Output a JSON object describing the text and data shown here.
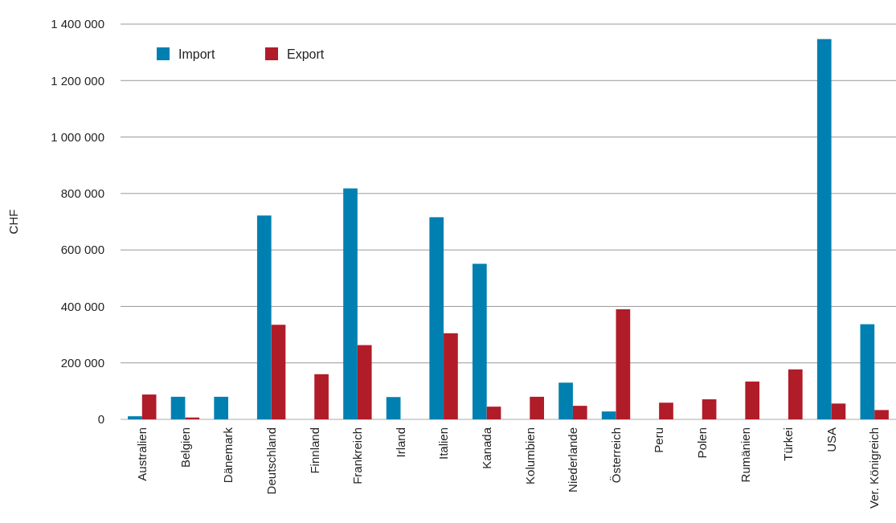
{
  "chart_data": {
    "type": "bar",
    "ylabel": "CHF",
    "categories": [
      "Australien",
      "Belgien",
      "Dänemark",
      "Deutschland",
      "Finnland",
      "Frankreich",
      "Irland",
      "Italien",
      "Kanada",
      "Kolumbien",
      "Niederlande",
      "Österreich",
      "Peru",
      "Polen",
      "Rumänien",
      "Türkei",
      "USA",
      "Ver. Königreich"
    ],
    "series": [
      {
        "name": "Import",
        "color": "#0080b0",
        "values": [
          11000,
          80000,
          80000,
          722000,
          null,
          818000,
          79000,
          716000,
          551000,
          null,
          130000,
          28000,
          null,
          null,
          null,
          null,
          1347000,
          337000
        ]
      },
      {
        "name": "Export",
        "color": "#b01c28",
        "values": [
          88000,
          6500,
          null,
          335000,
          160000,
          263000,
          null,
          305000,
          45000,
          80000,
          48000,
          390000,
          59000,
          71000,
          134000,
          177000,
          56000,
          33000
        ]
      }
    ],
    "ylim": [
      0,
      1400000
    ],
    "yticks": [
      {
        "value": 0,
        "label": "0"
      },
      {
        "value": 200000,
        "label": "200 000"
      },
      {
        "value": 400000,
        "label": "400 000"
      },
      {
        "value": 600000,
        "label": "600 000"
      },
      {
        "value": 800000,
        "label": "800 000"
      },
      {
        "value": 1000000,
        "label": "1 000 000"
      },
      {
        "value": 1200000,
        "label": "1 200 000"
      },
      {
        "value": 1400000,
        "label": "1 400 000"
      }
    ],
    "grid": "y",
    "legend": "top left"
  }
}
